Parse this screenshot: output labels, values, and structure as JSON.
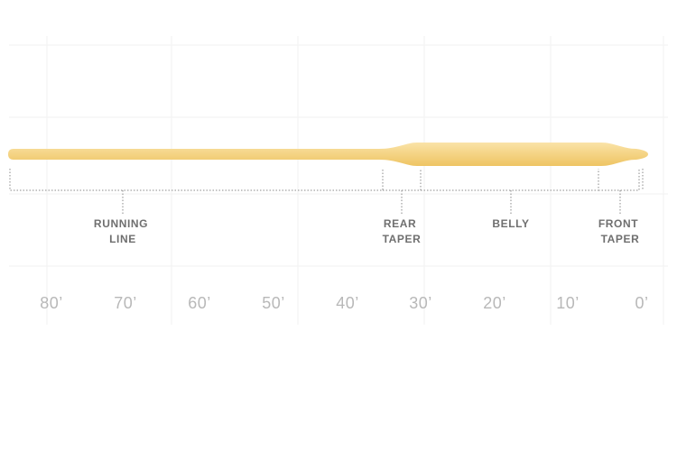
{
  "diagram": {
    "line_color": "#f5d587",
    "line_highlight": "#fae3a8",
    "line_shadow": "#eec463",
    "sections": [
      {
        "id": "running-line",
        "lines": [
          "RUNNING",
          "LINE"
        ]
      },
      {
        "id": "rear-taper",
        "lines": [
          "REAR",
          "TAPER"
        ]
      },
      {
        "id": "belly",
        "lines": [
          "BELLY"
        ]
      },
      {
        "id": "front-taper",
        "lines": [
          "FRONT",
          "TAPER"
        ]
      }
    ],
    "scale_labels": [
      "80’",
      "70’",
      "60’",
      "50’",
      "40’",
      "30’",
      "20’",
      "10’",
      "0’"
    ]
  }
}
